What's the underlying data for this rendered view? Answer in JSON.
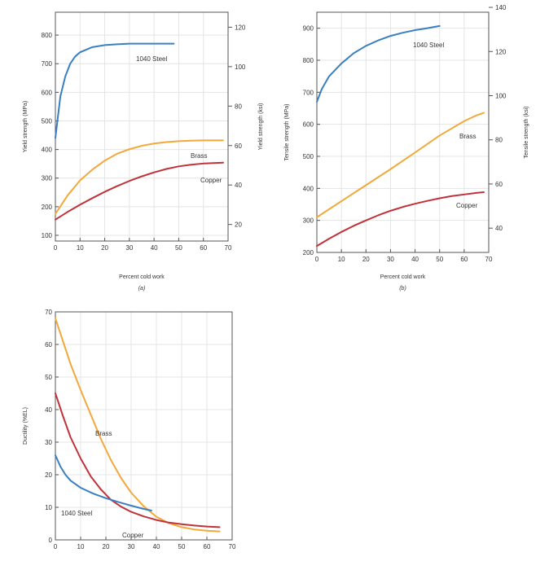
{
  "colors": {
    "steel": "#3a7fc1",
    "brass": "#f2a93b",
    "copper": "#c0323a",
    "grid": "#e4e4e4",
    "axis": "#555555"
  },
  "chart_data": [
    {
      "id": "a",
      "type": "line",
      "panel_label": "(a)",
      "xlabel": "Percent cold work",
      "ylabel": "Yield strength (MPa)",
      "ylabel_right": "Yield strength (ksi)",
      "xlim": [
        0,
        70
      ],
      "ylim": [
        80,
        880
      ],
      "ylim_right": [
        11.6,
        127.6
      ],
      "xticks": [
        "0",
        "10",
        "20",
        "30",
        "40",
        "50",
        "60",
        "70"
      ],
      "yticks": [
        "100",
        "200",
        "300",
        "400",
        "500",
        "600",
        "700",
        "800"
      ],
      "yticks_right": [
        "20",
        "40",
        "60",
        "80",
        "100",
        "120"
      ],
      "grid": true,
      "series": [
        {
          "name": "1040 Steel",
          "color": "steel",
          "x": [
            0,
            2,
            4,
            6,
            8,
            10,
            15,
            20,
            25,
            30,
            35,
            40,
            45,
            48
          ],
          "y": [
            440,
            585,
            655,
            700,
            725,
            740,
            758,
            765,
            768,
            770,
            770,
            770,
            770,
            770
          ]
        },
        {
          "name": "Brass",
          "color": "brass",
          "x": [
            0,
            5,
            10,
            15,
            20,
            25,
            30,
            35,
            40,
            45,
            50,
            55,
            60,
            65,
            68
          ],
          "y": [
            175,
            240,
            292,
            330,
            361,
            385,
            401,
            413,
            421,
            426,
            429,
            431,
            432,
            432,
            432
          ]
        },
        {
          "name": "Copper",
          "color": "copper",
          "x": [
            0,
            5,
            10,
            15,
            20,
            25,
            30,
            35,
            40,
            45,
            50,
            55,
            60,
            65,
            68
          ],
          "y": [
            155,
            182,
            207,
            230,
            252,
            272,
            290,
            306,
            320,
            332,
            341,
            347,
            351,
            353,
            354
          ]
        }
      ]
    },
    {
      "id": "b",
      "type": "line",
      "panel_label": "(b)",
      "xlabel": "Percent cold work",
      "ylabel": "Tensile strength (MPa)",
      "ylabel_right": "Tensile strength (ksi)",
      "xlim": [
        0,
        70
      ],
      "ylim": [
        200,
        950
      ],
      "ylim_right": [
        29,
        137.8
      ],
      "xticks": [
        "0",
        "10",
        "20",
        "30",
        "40",
        "50",
        "60",
        "70"
      ],
      "yticks": [
        "200",
        "300",
        "400",
        "500",
        "600",
        "700",
        "800",
        "900"
      ],
      "yticks_right": [
        "40",
        "60",
        "80",
        "100",
        "120",
        "140"
      ],
      "grid": true,
      "series": [
        {
          "name": "1040 Steel",
          "color": "steel",
          "x": [
            0,
            2,
            5,
            10,
            15,
            20,
            25,
            30,
            35,
            40,
            45,
            50
          ],
          "y": [
            670,
            710,
            750,
            790,
            822,
            845,
            862,
            876,
            886,
            894,
            900,
            907
          ]
        },
        {
          "name": "Brass",
          "color": "brass",
          "x": [
            0,
            10,
            20,
            30,
            40,
            50,
            60,
            65,
            68
          ],
          "y": [
            310,
            360,
            410,
            460,
            512,
            565,
            610,
            628,
            636
          ]
        },
        {
          "name": "Copper",
          "color": "copper",
          "x": [
            0,
            5,
            10,
            15,
            20,
            25,
            30,
            35,
            40,
            45,
            50,
            55,
            60,
            65,
            68
          ],
          "y": [
            220,
            243,
            264,
            283,
            300,
            316,
            330,
            342,
            352,
            361,
            369,
            376,
            381,
            386,
            388
          ]
        }
      ]
    },
    {
      "id": "c",
      "type": "line",
      "xlabel": "",
      "ylabel": "Ductility (%EL)",
      "xlim": [
        0,
        70
      ],
      "ylim": [
        0,
        70
      ],
      "xticks": [
        "0",
        "10",
        "20",
        "30",
        "40",
        "50",
        "60",
        "70"
      ],
      "yticks": [
        "0",
        "10",
        "20",
        "30",
        "40",
        "50",
        "60",
        "70"
      ],
      "grid": true,
      "series": [
        {
          "name": "Brass",
          "color": "brass",
          "x": [
            0,
            3,
            6,
            10,
            14,
            18,
            22,
            26,
            30,
            35,
            40,
            45,
            50,
            55,
            60,
            65
          ],
          "y": [
            68,
            61,
            54,
            46,
            38.5,
            31,
            24.5,
            19,
            14.5,
            10.3,
            7.1,
            5.1,
            3.9,
            3.2,
            2.8,
            2.6
          ]
        },
        {
          "name": "Copper",
          "color": "copper",
          "x": [
            0,
            3,
            6,
            10,
            14,
            18,
            22,
            26,
            30,
            35,
            40,
            45,
            50,
            55,
            60,
            65
          ],
          "y": [
            45,
            38,
            31.5,
            25,
            19.5,
            15.5,
            12.3,
            10.2,
            8.6,
            7.2,
            6.1,
            5.3,
            4.8,
            4.4,
            4.1,
            3.9
          ]
        },
        {
          "name": "1040 Steel",
          "color": "steel",
          "x": [
            0,
            2,
            4,
            6,
            10,
            15,
            20,
            25,
            30,
            35,
            38
          ],
          "y": [
            26,
            22.5,
            20,
            18.2,
            16,
            14.2,
            12.8,
            11.6,
            10.5,
            9.5,
            9
          ]
        }
      ]
    }
  ]
}
